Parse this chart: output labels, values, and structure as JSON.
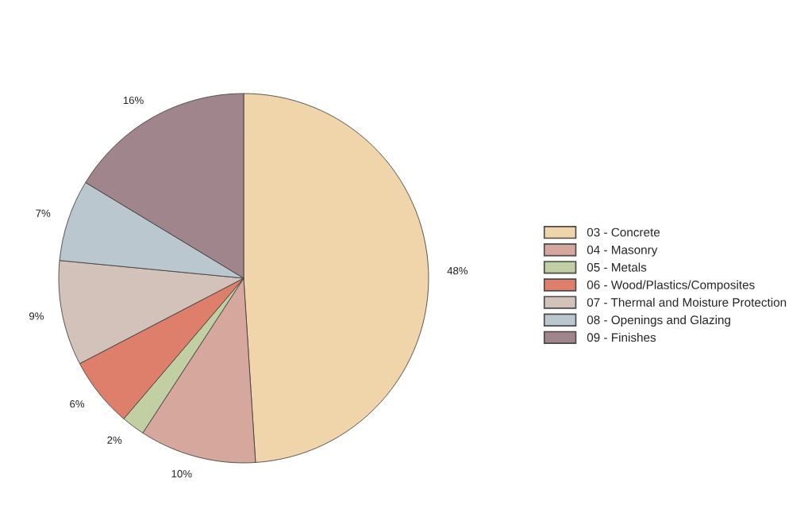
{
  "chart_data": {
    "type": "pie",
    "categories": [
      "03 - Concrete",
      "04 - Masonry",
      "05 - Metals",
      "06 - Wood/Plastics/Composites",
      "07 - Thermal and Moisture Protection",
      "08 - Openings and Glazing",
      "09 - Finishes"
    ],
    "values": [
      48,
      10,
      2,
      6,
      9,
      7,
      16
    ],
    "colors": [
      "#f0d5aa",
      "#d6a79c",
      "#c2cfa2",
      "#de7f6c",
      "#d3c2b9",
      "#bac7cf",
      "#a0858c"
    ],
    "value_labels": [
      "48%",
      "10%",
      "2%",
      "6%",
      "9%",
      "7%",
      "16%"
    ],
    "legend": "right"
  }
}
